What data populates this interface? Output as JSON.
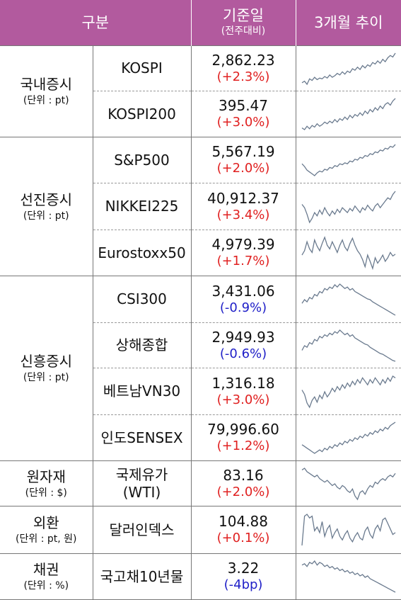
{
  "header": {
    "category": "구분",
    "value_main": "기준일",
    "value_sub": "(전주대비)",
    "trend": "3개월 추이"
  },
  "colors": {
    "header_bg": "#b25a9e",
    "up": "#e02020",
    "down": "#2020c8",
    "spark": "#6a7a8e"
  },
  "groups": [
    {
      "name": "국내증시",
      "unit": "(단위 : pt)",
      "rows": [
        {
          "name": [
            "KOSPI"
          ],
          "value": "2,862.23",
          "change": "(+2.3%)",
          "dir": "up",
          "spark": [
            40,
            42,
            38,
            45,
            43,
            47,
            44,
            46,
            45,
            48,
            46,
            50,
            47,
            49,
            52,
            50,
            54,
            51,
            55,
            53,
            58,
            56,
            60,
            57,
            62,
            59,
            63,
            61,
            66,
            64,
            68,
            65,
            70,
            67,
            72,
            75,
            73,
            78
          ]
        },
        {
          "name": [
            "KOSPI200"
          ],
          "value": "395.47",
          "change": "(+3.0%)",
          "dir": "up",
          "spark": [
            42,
            40,
            44,
            41,
            45,
            43,
            47,
            44,
            46,
            49,
            47,
            50,
            48,
            52,
            49,
            53,
            51,
            55,
            52,
            57,
            54,
            58,
            56,
            60,
            57,
            62,
            59,
            64,
            61,
            66,
            63,
            68,
            65,
            70,
            72,
            69,
            74,
            77
          ]
        }
      ]
    },
    {
      "name": "선진증시",
      "unit": "(단위 : pt)",
      "rows": [
        {
          "name": [
            "S&P500"
          ],
          "value": "5,567.19",
          "change": "(+2.0%)",
          "dir": "up",
          "spark": [
            55,
            52,
            48,
            46,
            44,
            42,
            45,
            47,
            46,
            49,
            48,
            51,
            50,
            53,
            52,
            55,
            54,
            56,
            55,
            58,
            57,
            60,
            59,
            62,
            61,
            64,
            63,
            66,
            65,
            68,
            67,
            70,
            69,
            72,
            71,
            74,
            73,
            76
          ]
        },
        {
          "name": [
            "NIKKEI225"
          ],
          "value": "40,912.37",
          "change": "(+3.4%)",
          "dir": "up",
          "spark": [
            62,
            58,
            50,
            40,
            45,
            52,
            48,
            55,
            50,
            58,
            52,
            48,
            54,
            50,
            56,
            52,
            58,
            55,
            52,
            57,
            54,
            60,
            56,
            52,
            58,
            55,
            61,
            57,
            54,
            60,
            63,
            58,
            62,
            66,
            70,
            68,
            74,
            78
          ]
        },
        {
          "name": [
            "Eurostoxx50"
          ],
          "value": "4,979.39",
          "change": "(+1.7%)",
          "dir": "up",
          "spark": [
            55,
            60,
            70,
            62,
            58,
            72,
            65,
            60,
            68,
            75,
            66,
            62,
            70,
            64,
            58,
            66,
            72,
            64,
            60,
            68,
            74,
            66,
            60,
            56,
            50,
            42,
            55,
            48,
            40,
            52,
            46,
            50,
            55,
            48,
            52,
            58,
            54,
            56
          ]
        }
      ]
    },
    {
      "name": "신흥증시",
      "unit": "(단위 : pt)",
      "rows": [
        {
          "name": [
            "CSI300"
          ],
          "value": "3,431.06",
          "change": "(-0.9%)",
          "dir": "down",
          "spark": [
            50,
            55,
            52,
            58,
            56,
            62,
            60,
            66,
            64,
            70,
            68,
            72,
            70,
            75,
            72,
            76,
            73,
            70,
            72,
            68,
            70,
            66,
            64,
            62,
            60,
            58,
            56,
            55,
            52,
            50,
            48,
            46,
            44,
            42,
            40,
            38,
            36,
            34
          ]
        },
        {
          "name": [
            "상해종합"
          ],
          "value": "2,949.93",
          "change": "(-0.6%)",
          "dir": "down",
          "spark": [
            48,
            54,
            52,
            58,
            56,
            62,
            60,
            66,
            64,
            68,
            66,
            70,
            68,
            72,
            70,
            74,
            71,
            68,
            70,
            66,
            68,
            64,
            62,
            60,
            58,
            56,
            55,
            52,
            50,
            48,
            46,
            44,
            43,
            41,
            39,
            37,
            35,
            34
          ]
        },
        {
          "name": [
            "베트남VN30"
          ],
          "value": "1,316.18",
          "change": "(+3.0%)",
          "dir": "up",
          "spark": [
            60,
            55,
            45,
            40,
            48,
            52,
            46,
            54,
            50,
            58,
            52,
            56,
            62,
            58,
            64,
            60,
            66,
            62,
            68,
            64,
            70,
            66,
            72,
            68,
            74,
            70,
            66,
            72,
            68,
            74,
            70,
            66,
            72,
            68,
            74,
            70,
            76,
            74
          ]
        },
        {
          "name": [
            "인도SENSEX"
          ],
          "value": "79,996.60",
          "change": "(+1.2%)",
          "dir": "up",
          "spark": [
            48,
            46,
            44,
            42,
            40,
            38,
            40,
            42,
            40,
            44,
            42,
            46,
            44,
            48,
            46,
            50,
            48,
            52,
            50,
            54,
            52,
            56,
            54,
            58,
            56,
            60,
            58,
            62,
            60,
            64,
            62,
            66,
            64,
            68,
            66,
            70,
            72,
            74
          ]
        }
      ]
    },
    {
      "name": "원자재",
      "unit": "(단위 : $)",
      "rows": [
        {
          "name": [
            "국제유가",
            "(WTI)"
          ],
          "value": "83.16",
          "change": "(+2.0%)",
          "dir": "up",
          "spark": [
            70,
            72,
            68,
            66,
            64,
            62,
            64,
            60,
            58,
            56,
            58,
            55,
            52,
            54,
            50,
            48,
            52,
            50,
            46,
            44,
            48,
            40,
            36,
            44,
            46,
            42,
            48,
            52,
            50,
            56,
            54,
            58,
            60,
            58,
            62,
            64,
            62,
            66
          ]
        }
      ]
    },
    {
      "name": "외환",
      "unit": "(단위 : pt, 원)",
      "rows": [
        {
          "name": [
            "달러인덱스"
          ],
          "value": "104.88",
          "change": "(+0.1%)",
          "dir": "up",
          "spark": [
            40,
            72,
            74,
            70,
            72,
            56,
            60,
            54,
            66,
            50,
            58,
            62,
            48,
            54,
            58,
            50,
            46,
            52,
            56,
            48,
            44,
            50,
            54,
            48,
            46,
            56,
            60,
            52,
            48,
            58,
            62,
            56,
            68,
            70,
            64,
            58,
            52,
            54
          ]
        }
      ]
    },
    {
      "name": "채권",
      "unit": "(단위 : %)",
      "rows": [
        {
          "name": [
            "국고채10년물"
          ],
          "value": "3.22",
          "change": "(-4bp)",
          "dir": "down",
          "spark": [
            60,
            62,
            58,
            64,
            62,
            66,
            60,
            64,
            62,
            58,
            60,
            56,
            58,
            54,
            56,
            52,
            54,
            50,
            52,
            48,
            50,
            46,
            48,
            44,
            46,
            42,
            44,
            40,
            38,
            36,
            34,
            32,
            30,
            28,
            26,
            24,
            22,
            20
          ]
        }
      ]
    }
  ]
}
